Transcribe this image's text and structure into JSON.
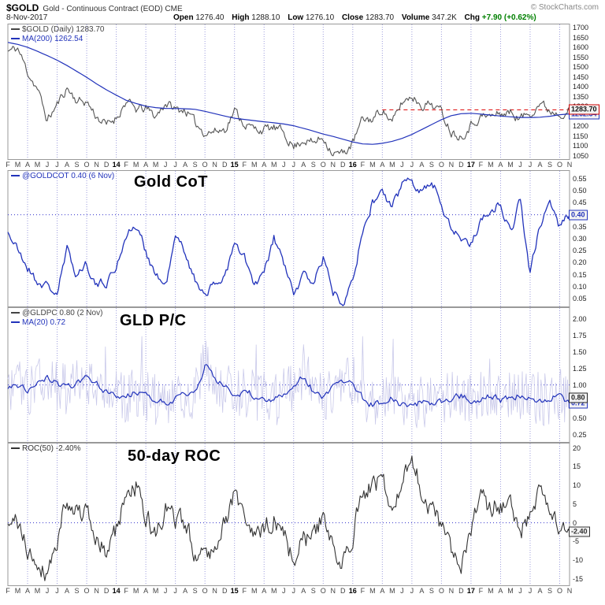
{
  "header": {
    "symbol": "$GOLD",
    "title": "Gold - Continuous Contract (EOD) CME",
    "copyright": "© StockCharts.com",
    "date": "8-Nov-2017",
    "quote": [
      {
        "label": "Open",
        "value": "1276.40"
      },
      {
        "label": "High",
        "value": "1288.10"
      },
      {
        "label": "Low",
        "value": "1276.10"
      },
      {
        "label": "Close",
        "value": "1283.70"
      },
      {
        "label": "Volume",
        "value": "347.2K"
      },
      {
        "label": "Chg",
        "value": "+7.90 (+0.62%)"
      }
    ],
    "chg_color": "#008000"
  },
  "chart_data": {
    "type": "line",
    "x_note": "Monthly positions Feb 2013 - Nov 2017; vertical dotted gridlines at quarter starts",
    "grid_start": 2,
    "grid_step": 3,
    "grid_color": "#9c9cdc",
    "categories": [
      "F",
      "M",
      "A",
      "M",
      "J",
      "J",
      "A",
      "S",
      "O",
      "N",
      "D",
      "14",
      "F",
      "M",
      "A",
      "M",
      "J",
      "J",
      "A",
      "S",
      "O",
      "N",
      "D",
      "15",
      "F",
      "M",
      "A",
      "M",
      "J",
      "J",
      "A",
      "S",
      "O",
      "N",
      "D",
      "16",
      "F",
      "M",
      "A",
      "M",
      "J",
      "J",
      "A",
      "S",
      "O",
      "N",
      "D",
      "17",
      "F",
      "M",
      "A",
      "M",
      "J",
      "J",
      "A",
      "S",
      "O",
      "N"
    ],
    "panels": [
      {
        "name": "price",
        "ylim": [
          1038,
          1712
        ],
        "yticks": {
          "min": 1050,
          "max": 1700,
          "step": 50,
          "decimals": 0
        },
        "hlines": [
          {
            "value": 1283.7,
            "color": "#dd0000",
            "dash": "5,4",
            "from": 38
          }
        ],
        "badges": [
          {
            "text": "1262.54",
            "value": 1262.54,
            "color": "#2233bb"
          },
          {
            "text": "1283.70",
            "value": 1283.7,
            "color": "#cc0000",
            "tcolor": "#111111"
          }
        ],
        "series": [
          {
            "name": "gold-price",
            "legend": "$GOLD (Daily) 1283.70",
            "legend_color": "#444444",
            "color": "#555555",
            "width": 1.1,
            "samples": 8,
            "noise": 40,
            "noise_type": "walk",
            "seed": 11,
            "values": [
              1580,
              1595,
              1475,
              1390,
              1230,
              1310,
              1395,
              1330,
              1325,
              1250,
              1205,
              1245,
              1325,
              1285,
              1290,
              1250,
              1320,
              1285,
              1285,
              1215,
              1170,
              1175,
              1185,
              1280,
              1215,
              1185,
              1185,
              1190,
              1170,
              1095,
              1135,
              1115,
              1145,
              1065,
              1060,
              1115,
              1235,
              1235,
              1290,
              1215,
              1320,
              1355,
              1310,
              1315,
              1275,
              1175,
              1150,
              1210,
              1250,
              1250,
              1265,
              1270,
              1240,
              1270,
              1320,
              1280,
              1270,
              1283.7
            ]
          },
          {
            "name": "ma-200",
            "legend": "MA(200) 1262.54",
            "legend_color": "#2233bb",
            "color": "#2233bb",
            "width": 1.2,
            "samples": 2,
            "noise": 0,
            "noise_type": "walk",
            "seed": 1,
            "values": [
              1625,
              1615,
              1600,
              1580,
              1558,
              1535,
              1508,
              1478,
              1448,
              1415,
              1385,
              1358,
              1332,
              1316,
              1302,
              1295,
              1291,
              1290,
              1289,
              1286,
              1276,
              1264,
              1252,
              1241,
              1235,
              1229,
              1223,
              1218,
              1212,
              1203,
              1190,
              1176,
              1161,
              1149,
              1135,
              1121,
              1111,
              1109,
              1114,
              1124,
              1139,
              1159,
              1184,
              1209,
              1234,
              1254,
              1264,
              1266,
              1262,
              1257,
              1252,
              1248,
              1245,
              1245,
              1246,
              1251,
              1259,
              1262.54
            ]
          }
        ]
      },
      {
        "name": "gold-cot",
        "big_label": "Gold CoT",
        "ylim": [
          0.02,
          0.58
        ],
        "yticks": {
          "min": 0.05,
          "max": 0.55,
          "step": 0.05,
          "decimals": 2
        },
        "hlines": [
          {
            "value": 0.4,
            "color": "#3333cc",
            "dash": "1,3"
          }
        ],
        "badges": [
          {
            "text": "0.40",
            "value": 0.4,
            "color": "#2233bb"
          }
        ],
        "series": [
          {
            "name": "goldcot",
            "legend": "@GOLDCOT 0.40 (6 Nov)",
            "legend_color": "#2233bb",
            "color": "#2233bb",
            "width": 1.3,
            "samples": 7,
            "noise": 0.035,
            "noise_type": "walk",
            "seed": 21,
            "values": [
              0.33,
              0.25,
              0.18,
              0.12,
              0.1,
              0.07,
              0.25,
              0.15,
              0.2,
              0.1,
              0.12,
              0.18,
              0.32,
              0.35,
              0.25,
              0.15,
              0.1,
              0.3,
              0.25,
              0.12,
              0.08,
              0.1,
              0.15,
              0.27,
              0.22,
              0.1,
              0.15,
              0.3,
              0.2,
              0.06,
              0.15,
              0.12,
              0.22,
              0.08,
              0.04,
              0.15,
              0.32,
              0.45,
              0.5,
              0.42,
              0.53,
              0.55,
              0.5,
              0.54,
              0.45,
              0.35,
              0.3,
              0.28,
              0.38,
              0.42,
              0.45,
              0.32,
              0.47,
              0.15,
              0.35,
              0.46,
              0.35,
              0.4
            ]
          }
        ]
      },
      {
        "name": "gld-put-call",
        "big_label": "GLD P/C",
        "ylim": [
          0.15,
          2.15
        ],
        "yticks": {
          "min": 0.25,
          "max": 2.0,
          "step": 0.25,
          "decimals": 2
        },
        "hlines": [
          {
            "value": 1.0,
            "color": "#3333cc",
            "dash": "1,3"
          }
        ],
        "badges": [
          {
            "text": "0.72",
            "value": 0.72,
            "color": "#2233bb"
          },
          {
            "text": "0.80",
            "value": 0.8,
            "color": "#222222"
          }
        ],
        "series": [
          {
            "name": "gldpc-raw",
            "legend": "@GLDPC 0.80 (2 Nov)",
            "legend_color": "#444444",
            "color": "#c9c9ea",
            "width": 0.8,
            "samples": 10,
            "noise": 0.4,
            "noise_type": "white",
            "seed": 31,
            "clip": [
              0.3,
              2.08
            ],
            "values": [
              0.95,
              1.0,
              0.92,
              1.05,
              1.1,
              1.0,
              0.95,
              1.05,
              1.1,
              1.0,
              0.9,
              0.85,
              0.8,
              0.9,
              0.85,
              0.8,
              0.75,
              0.8,
              0.85,
              0.9,
              1.3,
              1.1,
              0.95,
              0.85,
              0.9,
              0.85,
              0.8,
              0.75,
              0.85,
              1.0,
              1.15,
              0.9,
              0.8,
              0.95,
              1.0,
              1.05,
              0.8,
              0.7,
              0.75,
              0.8,
              0.7,
              0.65,
              0.75,
              0.7,
              0.75,
              0.8,
              0.85,
              0.75,
              0.8,
              0.85,
              0.75,
              0.8,
              0.85,
              0.8,
              0.75,
              0.8,
              0.85,
              0.8
            ]
          },
          {
            "name": "ma-20",
            "legend": "MA(20) 0.72",
            "legend_color": "#2233bb",
            "color": "#2233bb",
            "width": 1.2,
            "samples": 6,
            "noise": 0.09,
            "noise_type": "walk",
            "seed": 32,
            "values": [
              0.95,
              1.0,
              0.92,
              1.05,
              1.1,
              1.0,
              0.95,
              1.05,
              1.1,
              1.0,
              0.9,
              0.85,
              0.8,
              0.9,
              0.85,
              0.8,
              0.75,
              0.8,
              0.85,
              0.9,
              1.3,
              1.1,
              0.95,
              0.85,
              0.9,
              0.85,
              0.8,
              0.75,
              0.85,
              1.0,
              1.15,
              0.9,
              0.8,
              0.95,
              1.0,
              1.05,
              0.8,
              0.7,
              0.75,
              0.8,
              0.7,
              0.65,
              0.75,
              0.7,
              0.75,
              0.8,
              0.85,
              0.75,
              0.8,
              0.85,
              0.75,
              0.8,
              0.85,
              0.8,
              0.75,
              0.8,
              0.85,
              0.72
            ]
          }
        ]
      },
      {
        "name": "roc-50",
        "big_label": "50-day ROC",
        "ylim": [
          -16.5,
          21
        ],
        "yticks": {
          "min": -15,
          "max": 20,
          "step": 5,
          "decimals": 0
        },
        "hlines": [
          {
            "value": 0,
            "color": "#3333cc",
            "dash": "1,3"
          }
        ],
        "badges": [
          {
            "text": "-2.40",
            "value": -2.4,
            "color": "#333333"
          }
        ],
        "series": [
          {
            "name": "roc50",
            "legend": "ROC(50) -2.40%",
            "legend_color": "#333333",
            "color": "#333333",
            "width": 1.1,
            "samples": 8,
            "noise": 5,
            "noise_type": "walk",
            "seed": 41,
            "values": [
              -2,
              0,
              -8,
              -10,
              -13,
              -5,
              8,
              3,
              2,
              -5,
              -8,
              -2,
              8,
              10,
              1,
              -3,
              3,
              1,
              -1,
              -7,
              -9,
              -5,
              0,
              8,
              2,
              -5,
              -2,
              1,
              -3,
              -10,
              -4,
              -5,
              3,
              -8,
              -10,
              -2,
              10,
              9,
              12,
              2,
              10,
              18,
              8,
              4,
              -2,
              -8,
              -10,
              -2,
              5,
              4,
              5,
              4,
              -2,
              1,
              8,
              2,
              -1,
              -2.4
            ]
          }
        ]
      }
    ]
  }
}
